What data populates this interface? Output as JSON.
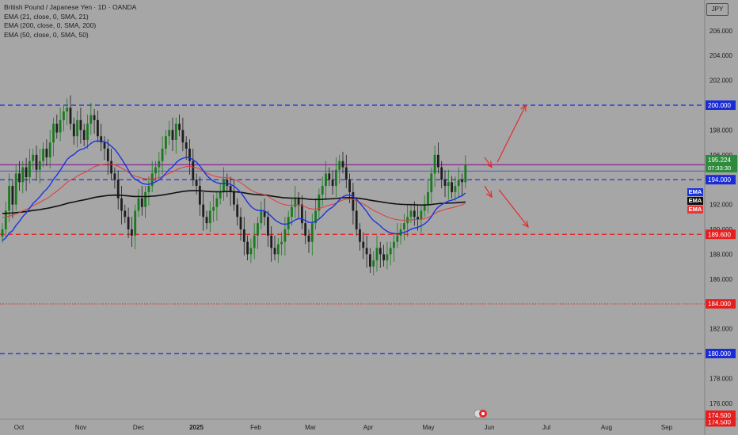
{
  "legend": {
    "title": "British Pound / Japanese Yen · 1D · OANDA",
    "ema1": "EMA (21, close, 0, SMA, 21)",
    "ema2": "EMA (200, close, 0, SMA, 200)",
    "ema3": "EMA (50, close, 0, SMA, 50)"
  },
  "currency_button": "JPY",
  "ema_tags": [
    "EMA",
    "EMA",
    "EMA"
  ],
  "colors": {
    "background": "#a6a6a6",
    "up_candle": "#197a1e",
    "down_candle": "#1e1e1e",
    "ema21": "#1a33e0",
    "ema50": "#e23a3a",
    "ema200": "#111111",
    "level_blue": "#1a2bd8",
    "level_red": "#e61e1e",
    "arrow": "#e52a2a"
  },
  "chart_data": {
    "type": "candlestick",
    "symbol": "British Pound / Japanese Yen",
    "interval": "1D",
    "source": "OANDA",
    "x_ticks": [
      "Oct",
      "Nov",
      "Dec",
      "2025",
      "Feb",
      "Mar",
      "Apr",
      "May",
      "Jun",
      "Jul",
      "Aug",
      "Sep"
    ],
    "y_ticks": [
      "206.000",
      "204.000",
      "202.000",
      "200.000",
      "198.000",
      "196.000",
      "194.000",
      "192.000",
      "190.000",
      "188.000",
      "186.000",
      "184.000",
      "182.000",
      "180.000",
      "178.000",
      "176.000",
      "174.500"
    ],
    "ylim": [
      174.2,
      207.8
    ],
    "last_price": {
      "value": "195.224",
      "countdown": "07:33:30"
    },
    "levels": [
      {
        "price": 200.0,
        "label": "200.000",
        "color": "blue",
        "style": "dashed"
      },
      {
        "price": 195.2,
        "label": "",
        "color": "blue",
        "style": "solid"
      },
      {
        "price": 194.0,
        "label": "194.000",
        "color": "blue",
        "style": "dashed"
      },
      {
        "price": 189.6,
        "label": "189.600",
        "color": "red",
        "style": "dashed"
      },
      {
        "price": 184.0,
        "label": "184.000",
        "color": "red",
        "style": "dotted"
      },
      {
        "price": 180.0,
        "label": "180.000",
        "color": "blue",
        "style": "dashed"
      },
      {
        "price": 174.5,
        "label": "174.500",
        "color": "red",
        "style": "none"
      }
    ],
    "closes": [
      190.0,
      191.5,
      193.5,
      192.0,
      194.5,
      193.8,
      195.0,
      194.2,
      195.5,
      196.0,
      194.8,
      195.5,
      196.5,
      195.8,
      197.0,
      198.5,
      197.8,
      198.8,
      199.5,
      199.8,
      198.5,
      197.5,
      198.8,
      198.0,
      197.2,
      198.5,
      199.2,
      198.8,
      197.5,
      197.0,
      196.5,
      195.5,
      194.5,
      194.0,
      192.5,
      191.5,
      191.0,
      190.0,
      189.5,
      191.5,
      192.5,
      191.8,
      193.0,
      193.5,
      194.5,
      195.0,
      195.5,
      196.5,
      197.5,
      198.0,
      197.2,
      198.5,
      198.0,
      197.0,
      196.5,
      195.5,
      194.0,
      193.5,
      192.0,
      191.0,
      190.5,
      191.5,
      191.8,
      192.5,
      193.0,
      194.0,
      193.5,
      193.0,
      192.0,
      191.0,
      190.0,
      189.0,
      188.0,
      188.5,
      189.5,
      190.5,
      191.5,
      191.0,
      189.5,
      188.5,
      188.0,
      188.8,
      189.0,
      190.0,
      191.0,
      191.8,
      192.5,
      192.0,
      190.5,
      189.5,
      189.0,
      190.5,
      191.5,
      192.8,
      193.5,
      194.5,
      194.0,
      193.5,
      194.8,
      195.5,
      195.0,
      194.0,
      193.0,
      191.5,
      190.0,
      189.0,
      188.5,
      188.0,
      187.0,
      187.5,
      188.5,
      188.0,
      187.5,
      188.0,
      188.5,
      189.0,
      189.5,
      190.0,
      190.5,
      191.0,
      191.5,
      191.0,
      190.8,
      191.5,
      192.0,
      193.0,
      194.5,
      196.0,
      195.0,
      194.0,
      193.5,
      193.8,
      193.0,
      193.5,
      194.0,
      193.8,
      195.224
    ],
    "ema_labels": [
      "EMA 21",
      "EMA 200",
      "EMA 50"
    ]
  }
}
